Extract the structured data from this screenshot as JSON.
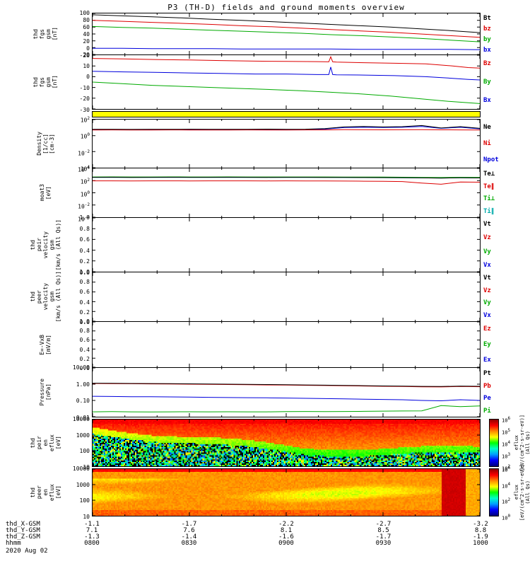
{
  "title": "P3 (TH-D) fields and ground moments overview",
  "footer": {
    "date": "2020 Aug 02",
    "rows": [
      {
        "label": "thd_X-GSM",
        "values": [
          "-1.1",
          "-1.7",
          "-2.2",
          "-2.7",
          "-3.2"
        ]
      },
      {
        "label": "thd_Y-GSM",
        "values": [
          "7.1",
          "7.6",
          "8.1",
          "8.5",
          "8.8"
        ]
      },
      {
        "label": "thd_Z-GSM",
        "values": [
          "-1.3",
          "-1.4",
          "-1.6",
          "-1.7",
          "-1.9"
        ]
      },
      {
        "label": "hhmm",
        "values": [
          "0800",
          "0830",
          "0900",
          "0930",
          "1000"
        ]
      }
    ]
  },
  "colors": {
    "black": "#000000",
    "red": "#dd0000",
    "green": "#00aa00",
    "blue": "#0000dd",
    "teal": "#00aaaa",
    "roi_yellow": "#ffff00"
  },
  "chart_data": [
    {
      "panel": "fgs1",
      "type": "line",
      "scale": "linear",
      "ylim": [
        -20,
        100
      ],
      "ylabel": [
        "thd",
        "fgs",
        "gsm",
        "[nT]"
      ],
      "yticks": [
        {
          "v": 100,
          "label": "100"
        },
        {
          "v": 80,
          "label": "80"
        },
        {
          "v": 60,
          "label": "60"
        },
        {
          "v": 40,
          "label": "40"
        },
        {
          "v": 20,
          "label": "20"
        },
        {
          "v": 0,
          "label": "0"
        },
        {
          "v": -20,
          "label": "-20"
        }
      ],
      "series": [
        {
          "name": "Bt",
          "color": "#000000",
          "values": [
            96,
            93,
            90,
            87,
            83,
            80,
            76,
            72,
            68,
            64,
            60,
            55,
            50,
            44
          ]
        },
        {
          "name": "bz",
          "color": "#dd0000",
          "values": [
            80,
            77,
            74,
            71,
            68,
            64,
            61,
            57,
            53,
            49,
            45,
            40,
            35,
            30
          ]
        },
        {
          "name": "by",
          "color": "#00aa00",
          "values": [
            62,
            59,
            57,
            54,
            51,
            48,
            45,
            42,
            38,
            35,
            31,
            27,
            22,
            17
          ]
        },
        {
          "name": "bx",
          "color": "#0000dd",
          "values": [
            -2,
            -2,
            -3,
            -3,
            -3,
            -4,
            -4,
            -4,
            -4,
            -5,
            -5,
            -5,
            -5,
            -6
          ]
        }
      ]
    },
    {
      "panel": "fgs2",
      "type": "line",
      "scale": "linear",
      "ylim": [
        -30,
        20
      ],
      "ylabel": [
        "thd",
        "fgs",
        "gsm",
        "[nT]"
      ],
      "yticks": [
        {
          "v": 20,
          "label": "20"
        },
        {
          "v": 10,
          "label": "10"
        },
        {
          "v": 0,
          "label": "0"
        },
        {
          "v": -10,
          "label": "-10"
        },
        {
          "v": -20,
          "label": "-20"
        },
        {
          "v": -30,
          "label": "-30"
        }
      ],
      "series": [
        {
          "name": "Bz",
          "color": "#dd0000",
          "x": [
            0,
            0.08,
            0.16,
            0.25,
            0.33,
            0.42,
            0.5,
            0.58,
            0.61,
            0.615,
            0.62,
            0.63,
            0.7,
            0.78,
            0.86,
            0.93,
            0.97,
            1
          ],
          "values": [
            17,
            16.5,
            16,
            15.5,
            15,
            14.5,
            14.2,
            14,
            13.8,
            18.5,
            13.8,
            13.6,
            13,
            12.5,
            12,
            10,
            8.5,
            8
          ]
        },
        {
          "name": "By",
          "color": "#00aa00",
          "values": [
            -5,
            -6.5,
            -8,
            -9,
            -10,
            -11,
            -12,
            -13,
            -14.5,
            -16,
            -18,
            -20.5,
            -23,
            -25
          ]
        },
        {
          "name": "Bx",
          "color": "#0000dd",
          "x": [
            0,
            0.08,
            0.16,
            0.25,
            0.33,
            0.42,
            0.5,
            0.58,
            0.61,
            0.615,
            0.62,
            0.63,
            0.7,
            0.78,
            0.86,
            0.93,
            0.97,
            1
          ],
          "values": [
            5,
            4.5,
            4,
            3.5,
            3,
            2.5,
            2.5,
            2,
            2,
            9,
            2,
            1.8,
            1.5,
            1,
            0,
            -1.5,
            -2.5,
            -3
          ]
        }
      ]
    },
    {
      "panel": "roi",
      "type": "fill",
      "color": "#ffff00",
      "name": "roi-coverage-bar"
    },
    {
      "panel": "density",
      "type": "line",
      "scale": "log",
      "ylim": [
        -4,
        2
      ],
      "ylabel": [
        "Density",
        "[1/cc]",
        "[cm-3]"
      ],
      "yticks": [
        {
          "v": 2,
          "pow": 2
        },
        {
          "v": 0,
          "pow": 0
        },
        {
          "v": -2,
          "pow": -2
        },
        {
          "v": -4,
          "pow": -4
        }
      ],
      "series": [
        {
          "name": "Ne",
          "color": "#000000",
          "values": [
            6,
            6.2,
            5.9,
            6.1,
            6,
            6.3,
            6.1,
            6,
            6.2,
            6.4,
            6.1,
            6.3,
            7.5,
            12,
            14,
            12,
            13,
            18,
            9,
            13,
            8
          ]
        },
        {
          "name": "Ni",
          "color": "#dd0000",
          "values": [
            5,
            5.1,
            4.9,
            5,
            5.1,
            5,
            4.9,
            5,
            5.1,
            5,
            5,
            5.1,
            5.2,
            5.5,
            5.4,
            5.3,
            5.4,
            5.6,
            5.3,
            5.2,
            5
          ]
        },
        {
          "name": "Npot",
          "color": "#0000dd",
          "values": [
            5.5,
            5.6,
            5.4,
            5.5,
            5.6,
            5.5,
            5.4,
            5.5,
            5.6,
            5.5,
            5.5,
            5.6,
            6.5,
            10,
            11,
            10,
            11,
            14,
            8,
            11,
            7
          ]
        }
      ]
    },
    {
      "panel": "moat3",
      "type": "line",
      "scale": "log",
      "ylim": [
        -4,
        4
      ],
      "ylabel": [
        "moat3",
        "[eV]"
      ],
      "yticks": [
        {
          "v": 4,
          "pow": 4
        },
        {
          "v": 2,
          "pow": 2
        },
        {
          "v": 0,
          "pow": 0
        },
        {
          "v": -2,
          "pow": -2
        },
        {
          "v": -4,
          "pow": -4
        }
      ],
      "series": [
        {
          "name": "Te⊥",
          "color": "#000000",
          "values": [
            350,
            360,
            340,
            350,
            355,
            345,
            350,
            360,
            350,
            340,
            350,
            345,
            340,
            330,
            320,
            310,
            300,
            280,
            260,
            290,
            270
          ]
        },
        {
          "name": "Te∥",
          "color": "#dd0000",
          "values": [
            90,
            92,
            88,
            90,
            91,
            89,
            90,
            92,
            90,
            88,
            90,
            89,
            88,
            85,
            80,
            75,
            70,
            40,
            25,
            60,
            55
          ]
        },
        {
          "name": "Ti⊥",
          "color": "#00aa00",
          "values": [
            400,
            410,
            395,
            400,
            405,
            398,
            400,
            408,
            400,
            395,
            400,
            398,
            395,
            390,
            380,
            370,
            360,
            340,
            320,
            350,
            330
          ]
        },
        {
          "name": "Ti∥",
          "color": "#00aaaa",
          "values": [
            330,
            335,
            325,
            330,
            332,
            328,
            330,
            334,
            330,
            326,
            330,
            328,
            326,
            320,
            312,
            305,
            298,
            280,
            265,
            285,
            270
          ]
        }
      ]
    },
    {
      "panel": "peir-vel",
      "type": "line",
      "scale": "linear",
      "ylim": [
        0,
        1
      ],
      "ylabel": [
        "thd",
        "peir",
        "velocity",
        "gsm",
        "[km/s (All Qs)]"
      ],
      "yticks": [
        {
          "v": 1,
          "label": "1.0"
        },
        {
          "v": 0.8,
          "label": "0.8"
        },
        {
          "v": 0.6,
          "label": "0.6"
        },
        {
          "v": 0.4,
          "label": "0.4"
        },
        {
          "v": 0.2,
          "label": "0.2"
        },
        {
          "v": 0,
          "label": "0.0"
        }
      ],
      "series": [
        {
          "name": "Vt",
          "color": "#000000",
          "values": []
        },
        {
          "name": "Vz",
          "color": "#dd0000",
          "values": []
        },
        {
          "name": "Vy",
          "color": "#00aa00",
          "values": []
        },
        {
          "name": "Vx",
          "color": "#0000dd",
          "values": []
        }
      ]
    },
    {
      "panel": "peer-vel",
      "type": "line",
      "scale": "linear",
      "ylim": [
        0,
        1
      ],
      "ylabel": [
        "thd",
        "peer",
        "velocity",
        "gsm",
        "[km/s (All Qs)]"
      ],
      "yticks": [
        {
          "v": 1,
          "label": "1.0"
        },
        {
          "v": 0.8,
          "label": "0.8"
        },
        {
          "v": 0.6,
          "label": "0.6"
        },
        {
          "v": 0.4,
          "label": "0.4"
        },
        {
          "v": 0.2,
          "label": "0.2"
        },
        {
          "v": 0,
          "label": "0.0"
        }
      ],
      "series": [
        {
          "name": "Vt",
          "color": "#000000",
          "values": []
        },
        {
          "name": "Vz",
          "color": "#dd0000",
          "values": []
        },
        {
          "name": "Vy",
          "color": "#00aa00",
          "values": []
        },
        {
          "name": "Vx",
          "color": "#0000dd",
          "values": []
        }
      ]
    },
    {
      "panel": "efield",
      "type": "line",
      "scale": "linear",
      "ylim": [
        0,
        1
      ],
      "ylabel": [
        "E=-VxB",
        "[mV/m]"
      ],
      "yticks": [
        {
          "v": 1,
          "label": "1.0"
        },
        {
          "v": 0.8,
          "label": "0.8"
        },
        {
          "v": 0.6,
          "label": "0.6"
        },
        {
          "v": 0.4,
          "label": "0.4"
        },
        {
          "v": 0.2,
          "label": "0.2"
        },
        {
          "v": 0,
          "label": "0.0"
        }
      ],
      "series": [
        {
          "name": "Ez",
          "color": "#dd0000",
          "values": []
        },
        {
          "name": "Ey",
          "color": "#00aa00",
          "values": []
        },
        {
          "name": "Ex",
          "color": "#0000dd",
          "values": []
        }
      ]
    },
    {
      "panel": "pressure",
      "type": "line",
      "scale": "log",
      "ylim": [
        -2,
        1
      ],
      "ylabel": [
        "Pressure",
        "[nPa]"
      ],
      "yticks": [
        {
          "v": 1,
          "label": "10.00"
        },
        {
          "v": 0,
          "label": "1.00"
        },
        {
          "v": -1,
          "label": "0.10"
        },
        {
          "v": -2,
          "label": "0.01"
        }
      ],
      "series": [
        {
          "name": "Pt",
          "color": "#000000",
          "values": [
            1.15,
            1.13,
            1.11,
            1.09,
            1.07,
            1.05,
            1.02,
            1,
            0.97,
            0.95,
            0.92,
            0.9,
            0.87,
            0.84,
            0.81,
            0.78,
            0.76,
            0.73,
            0.72,
            0.76,
            0.74
          ]
        },
        {
          "name": "Pb",
          "color": "#dd0000",
          "values": [
            1.1,
            1.08,
            1.06,
            1.04,
            1.02,
            1,
            0.97,
            0.95,
            0.92,
            0.9,
            0.88,
            0.85,
            0.83,
            0.8,
            0.77,
            0.74,
            0.72,
            0.69,
            0.68,
            0.72,
            0.7
          ]
        },
        {
          "name": "Pe",
          "color": "#0000dd",
          "values": [
            0.18,
            0.175,
            0.17,
            0.168,
            0.165,
            0.16,
            0.155,
            0.15,
            0.148,
            0.145,
            0.14,
            0.135,
            0.13,
            0.125,
            0.12,
            0.115,
            0.11,
            0.1,
            0.095,
            0.11,
            0.1
          ]
        },
        {
          "name": "Pi",
          "color": "#00aa00",
          "values": [
            0.02,
            0.0205,
            0.02,
            0.0198,
            0.02,
            0.0202,
            0.02,
            0.0201,
            0.0199,
            0.02,
            0.0205,
            0.021,
            0.0205,
            0.021,
            0.0215,
            0.022,
            0.0225,
            0.023,
            0.048,
            0.042,
            0.046
          ]
        }
      ]
    },
    {
      "panel": "peir-spec",
      "type": "spectrogram",
      "scale": "log",
      "ylim": [
        1,
        4
      ],
      "ylabel": [
        "thd",
        "peir",
        "en",
        "eflux",
        "[eV]"
      ],
      "yticks": [
        {
          "v": 4,
          "label": "10000"
        },
        {
          "v": 3,
          "label": "1000"
        },
        {
          "v": 2,
          "label": "100"
        },
        {
          "v": 1,
          "label": "10"
        }
      ],
      "pattern": "peir",
      "seed": 7,
      "colorbar": {
        "range": [
          2,
          6
        ],
        "ticks": [
          {
            "v": 6,
            "pow": 6
          },
          {
            "v": 5,
            "pow": 5
          },
          {
            "v": 4,
            "pow": 4
          },
          {
            "v": 3,
            "pow": 3
          },
          {
            "v": 2,
            "pow": 2
          }
        ],
        "label": "eflux",
        "units": "[eV/(cm^2-s-sr-eV)]",
        "qualifier": "(All Qs)"
      }
    },
    {
      "panel": "peer-spec",
      "type": "spectrogram",
      "scale": "log",
      "ylim": [
        1,
        4
      ],
      "ylabel": [
        "thd",
        "peer",
        "en",
        "eflux",
        "[eV]"
      ],
      "yticks": [
        {
          "v": 4,
          "label": "10000"
        },
        {
          "v": 3,
          "label": "1000"
        },
        {
          "v": 2,
          "label": "100"
        },
        {
          "v": 1,
          "label": "10"
        }
      ],
      "pattern": "peer",
      "seed": 13,
      "colorbar": {
        "range": [
          0,
          6
        ],
        "ticks": [
          {
            "v": 6,
            "pow": 6
          },
          {
            "v": 4,
            "pow": 4
          },
          {
            "v": 2,
            "pow": 2
          },
          {
            "v": 0,
            "pow": 0
          }
        ],
        "label": "eflux",
        "units": "[eV/(cm^2-s-sr-eV)]",
        "qualifier": "(All Qs)"
      }
    }
  ]
}
